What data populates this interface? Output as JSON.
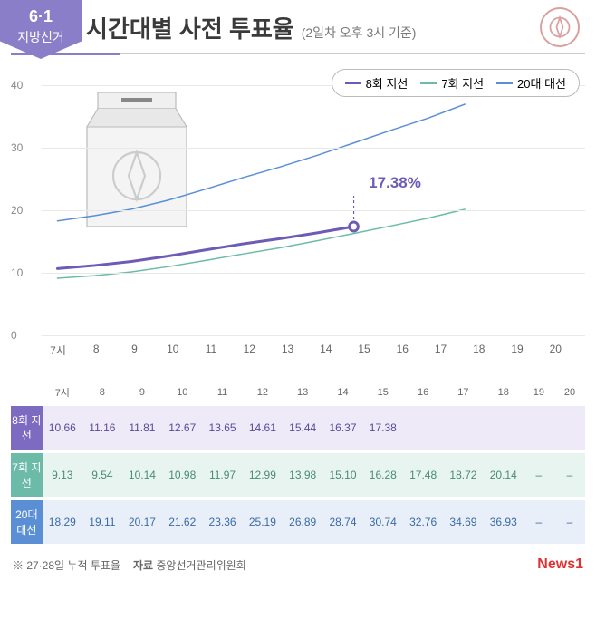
{
  "badge": {
    "line1": "6·1",
    "line2": "지방선거"
  },
  "title": "시간대별 사전 투표율",
  "subtitle": "(2일차 오후 3시 기준)",
  "chart": {
    "type": "line",
    "ylim": [
      0,
      42
    ],
    "yticks": [
      0,
      10,
      20,
      30,
      40
    ],
    "x_labels": [
      "7시",
      "8",
      "9",
      "10",
      "11",
      "12",
      "13",
      "14",
      "15",
      "16",
      "17",
      "18",
      "19",
      "20"
    ],
    "grid_color": "#e8e8e8",
    "highlight": {
      "label": "17.38%",
      "series": 0,
      "index": 8
    },
    "series": [
      {
        "name": "8회 지선",
        "color": "#6d5bb5",
        "width": 3,
        "values": [
          10.66,
          11.16,
          11.81,
          12.67,
          13.65,
          14.61,
          15.44,
          16.37,
          17.38
        ]
      },
      {
        "name": "7회 지선",
        "color": "#6bbba8",
        "width": 1.5,
        "values": [
          9.13,
          9.54,
          10.14,
          10.98,
          11.97,
          12.99,
          13.98,
          15.1,
          16.28,
          17.48,
          18.72,
          20.14
        ]
      },
      {
        "name": "20대 대선",
        "color": "#5a8fd6",
        "width": 1.5,
        "values": [
          18.29,
          19.11,
          20.17,
          21.62,
          23.36,
          25.19,
          26.89,
          28.74,
          30.74,
          32.76,
          34.69,
          36.93
        ]
      }
    ]
  },
  "table": {
    "columns": [
      "7시",
      "8",
      "9",
      "10",
      "11",
      "12",
      "13",
      "14",
      "15",
      "16",
      "17",
      "18",
      "19",
      "20"
    ],
    "rows": [
      {
        "label": "8회 지선",
        "cls": "row-8",
        "cells": [
          "10.66",
          "11.16",
          "11.81",
          "12.67",
          "13.65",
          "14.61",
          "15.44",
          "16.37",
          "17.38",
          "",
          "",
          "",
          "",
          ""
        ]
      },
      {
        "label": "7회 지선",
        "cls": "row-7",
        "cells": [
          "9.13",
          "9.54",
          "10.14",
          "10.98",
          "11.97",
          "12.99",
          "13.98",
          "15.10",
          "16.28",
          "17.48",
          "18.72",
          "20.14",
          "–",
          "–"
        ]
      },
      {
        "label": "20대 대선",
        "cls": "row-20",
        "cells": [
          "18.29",
          "19.11",
          "20.17",
          "21.62",
          "23.36",
          "25.19",
          "26.89",
          "28.74",
          "30.74",
          "32.76",
          "34.69",
          "36.93",
          "–",
          "–"
        ]
      }
    ]
  },
  "footnote": "※ 27·28일 누적 투표율",
  "source_label": "자료",
  "source": "중앙선거관리위원회",
  "logo": "뉴스1",
  "logo_brand": "News",
  "logo_brand_accent": "1"
}
